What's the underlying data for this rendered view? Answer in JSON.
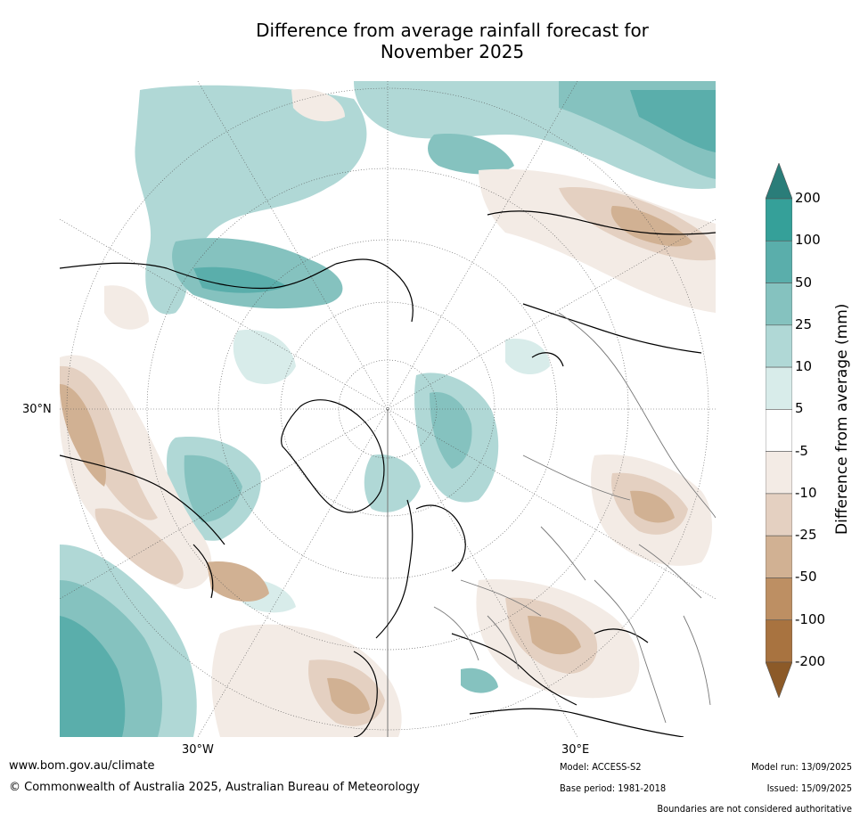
{
  "title": {
    "line1": "Difference from average rainfall forecast for",
    "line2": "November 2025"
  },
  "map": {
    "projection": "north-polar-stereographic",
    "labels": {
      "lat_30n": "30°N",
      "lon_30w": "30°W",
      "lon_30e": "30°E"
    }
  },
  "colorbar": {
    "title": "Difference from average (mm)",
    "ticks": [
      "200",
      "100",
      "50",
      "25",
      "10",
      "5",
      "-5",
      "-10",
      "-25",
      "-50",
      "-100",
      "-200"
    ],
    "colors": [
      "#2a7d79",
      "#35a099",
      "#5aaeab",
      "#85c2bf",
      "#b0d8d6",
      "#d8ecea",
      "#ffffff",
      "#f3ebe5",
      "#e4d0c1",
      "#d1b193",
      "#bd8f63",
      "#a87340",
      "#8c5a28"
    ]
  },
  "footer": {
    "website": "www.bom.gov.au/climate",
    "copyright": "© Commonwealth of Australia 2025, Australian Bureau of Meteorology",
    "model": "Model: ACCESS-S2",
    "base_period": "Base period: 1981-2018",
    "model_run": "Model run: 13/09/2025",
    "issued": "Issued: 15/09/2025",
    "disclaimer": "Boundaries are not considered authoritative"
  }
}
